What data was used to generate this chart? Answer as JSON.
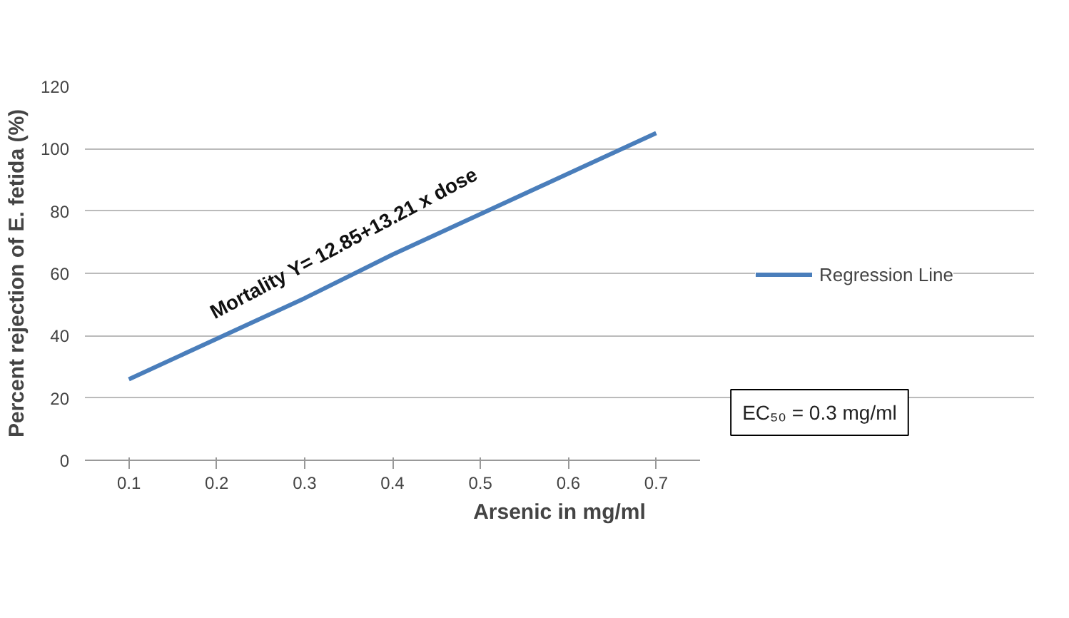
{
  "chart_data": {
    "type": "line",
    "xlabel": "Arsenic in mg/ml",
    "ylabel": "Percent rejection of E. fetida (%)",
    "categories": [
      "0.1",
      "0.2",
      "0.3",
      "0.4",
      "0.5",
      "0.6",
      "0.7"
    ],
    "series": [
      {
        "name": "Regression Line",
        "color": "#4a7ebb",
        "values": [
          26,
          39,
          52,
          66,
          79,
          92,
          105
        ]
      }
    ],
    "ylim": [
      0,
      120
    ],
    "yticks": [
      0,
      20,
      40,
      60,
      80,
      100,
      120
    ],
    "grid": "y",
    "legend": "right",
    "marker": "none",
    "line_style": "solid",
    "annotations": [
      "Mortality Y= 12.85+13.21 x dose",
      "EC₅₀ = 0.3 mg/ml"
    ]
  }
}
